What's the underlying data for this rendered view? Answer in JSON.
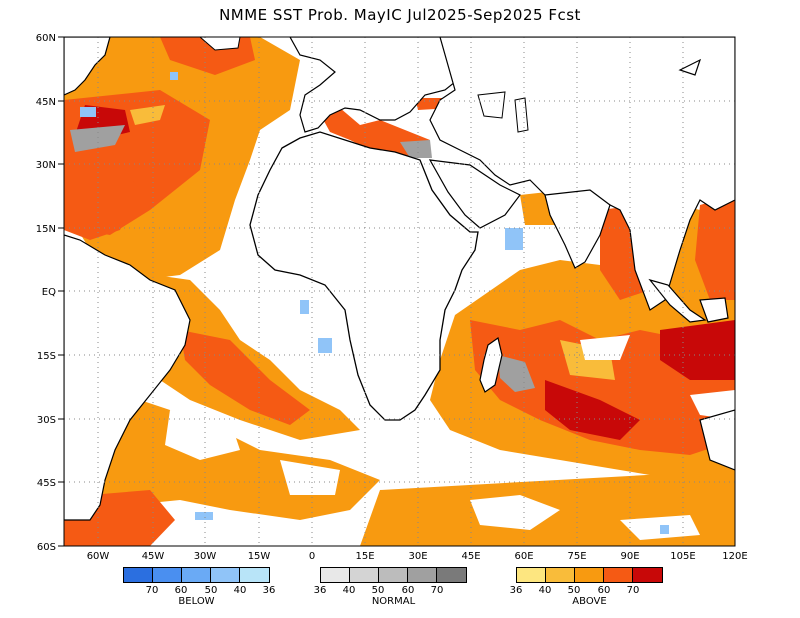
{
  "title": "NMME SST Prob. MayIC   Jul2025-Sep2025 Fcst",
  "axes": {
    "lat_labels": [
      "60N",
      "45N",
      "30N",
      "15N",
      "EQ",
      "15S",
      "30S",
      "45S",
      "60S"
    ],
    "lon_labels": [
      "60W",
      "45W",
      "30W",
      "15W",
      "0",
      "15E",
      "30E",
      "45E",
      "60E",
      "75E",
      "90E",
      "105E",
      "120E"
    ]
  },
  "legend": {
    "below": {
      "name": "BELOW",
      "ticks": [
        "70",
        "60",
        "50",
        "40",
        "36"
      ],
      "colors": [
        "#2b6fe0",
        "#4a8ff0",
        "#6aaaf5",
        "#90c4f8",
        "#b8e4f8"
      ]
    },
    "normal": {
      "name": "NORMAL",
      "ticks": [
        "36",
        "40",
        "50",
        "60",
        "70"
      ],
      "colors": [
        "#e8e8e8",
        "#d4d4d4",
        "#bcbcbc",
        "#a0a0a0",
        "#7a7a7a"
      ]
    },
    "above": {
      "name": "ABOVE",
      "ticks": [
        "36",
        "40",
        "50",
        "60",
        "70"
      ],
      "colors": [
        "#fde680",
        "#f9bc3a",
        "#f89a10",
        "#f55a14",
        "#c80808"
      ]
    }
  }
}
